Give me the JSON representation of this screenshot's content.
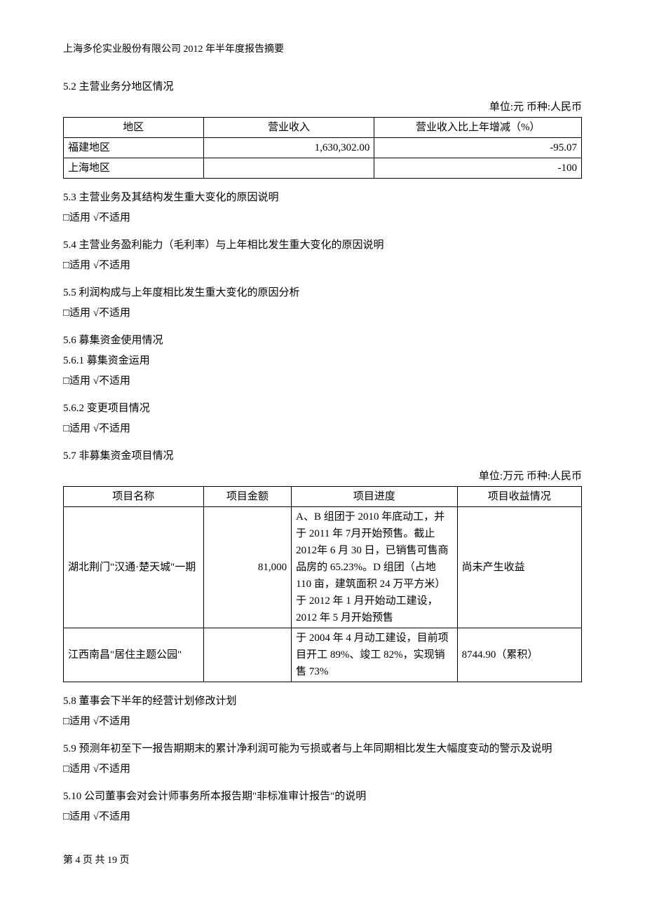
{
  "header": "上海多伦实业股份有限公司 2012 年半年度报告摘要",
  "section_5_2": {
    "title": "5.2 主营业务分地区情况",
    "unit": "单位:元 币种:人民币",
    "columns": [
      "地区",
      "营业收入",
      "营业收入比上年增减（%）"
    ],
    "rows": [
      {
        "region": "福建地区",
        "revenue": "1,630,302.00",
        "change": "-95.07"
      },
      {
        "region": "上海地区",
        "revenue": "",
        "change": "-100"
      }
    ]
  },
  "section_5_3": {
    "title": "5.3 主营业务及其结构发生重大变化的原因说明",
    "checkbox": "□适用 √不适用"
  },
  "section_5_4": {
    "title": "5.4 主营业务盈利能力（毛利率）与上年相比发生重大变化的原因说明",
    "checkbox": "□适用 √不适用"
  },
  "section_5_5": {
    "title": "5.5 利润构成与上年度相比发生重大变化的原因分析",
    "checkbox": "□适用 √不适用"
  },
  "section_5_6": {
    "title": "5.6 募集资金使用情况"
  },
  "section_5_6_1": {
    "title": "5.6.1 募集资金运用",
    "checkbox": "□适用 √不适用"
  },
  "section_5_6_2": {
    "title": "5.6.2 变更项目情况",
    "checkbox": "□适用 √不适用"
  },
  "section_5_7": {
    "title": "5.7 非募集资金项目情况",
    "unit": "单位:万元 币种:人民币",
    "columns": [
      "项目名称",
      "项目金额",
      "项目进度",
      "项目收益情况"
    ],
    "rows": [
      {
        "name": "湖北荆门\"汉通·楚天城\"一期",
        "amount": "81,000",
        "progress": "A、B 组团于 2010 年底动工，并于 2011 年 7月开始预售。截止 2012年 6 月 30 日，已销售可售商品房的 65.23%。D 组团（占地 110 亩，建筑面积 24 万平方米）于 2012 年 1 月开始动工建设，2012 年 5 月开始预售",
        "income": "尚未产生收益"
      },
      {
        "name": "江西南昌\"居住主题公园\"",
        "amount": "",
        "progress": "于 2004 年 4 月动工建设，目前项目开工 89%、竣工 82%，实现销售 73%",
        "income": "8744.90（累积）"
      }
    ]
  },
  "section_5_8": {
    "title": "5.8 董事会下半年的经营计划修改计划",
    "checkbox": "□适用 √不适用"
  },
  "section_5_9": {
    "title": "5.9 预测年初至下一报告期期末的累计净利润可能为亏损或者与上年同期相比发生大幅度变动的警示及说明",
    "checkbox": "□适用 √不适用"
  },
  "section_5_10": {
    "title": "5.10 公司董事会对会计师事务所本报告期\"非标准审计报告\"的说明",
    "checkbox": "□适用 √不适用"
  },
  "footer": "第 4 页 共 19 页"
}
